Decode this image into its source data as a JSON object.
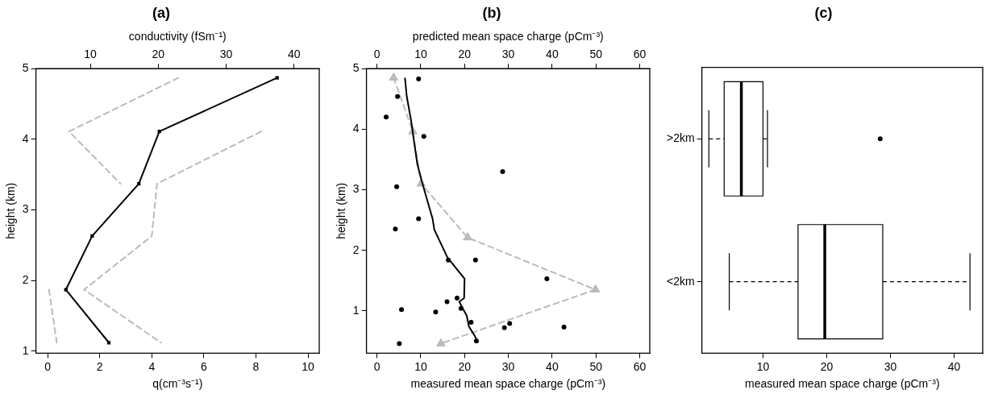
{
  "chart_data": [
    {
      "type": "line",
      "title": "(a)",
      "xlabel": "q(cm⁻³s⁻¹)",
      "x2label": "conductivity (fSm⁻¹)",
      "ylabel": "height (km)",
      "xlim": [
        -0.45,
        10.43
      ],
      "xticks": [
        0,
        2,
        4,
        6,
        8,
        10
      ],
      "x2lim": [
        2.0,
        43.7
      ],
      "x2ticks": [
        10,
        20,
        30,
        40
      ],
      "ylim": [
        0.97,
        5.0
      ],
      "yticks": [
        1,
        2,
        3,
        4,
        5
      ],
      "series": [
        {
          "color": "#000000",
          "marker": "square",
          "line_style": "solid",
          "x": [
            8.81,
            4.29,
            3.5,
            1.71,
            0.7,
            2.35
          ],
          "values": [
            4.87,
            4.11,
            3.37,
            2.63,
            1.87,
            1.12
          ]
        },
        {
          "color": "#bbbbbb",
          "marker": "none",
          "line_style": "dashed",
          "x": [
            5.02,
            0.82,
            2.8,
            null,
            0.05,
            0.35
          ],
          "values": [
            4.87,
            4.11,
            3.37,
            null,
            1.87,
            1.12
          ]
        },
        {
          "color": "#bbbbbb",
          "marker": "none",
          "line_style": "dashed",
          "x": [
            null,
            8.2,
            4.2,
            4.0,
            1.4,
            4.35
          ],
          "values": [
            null,
            4.11,
            3.37,
            2.63,
            1.87,
            1.12
          ]
        }
      ]
    },
    {
      "type": "scatter",
      "title": "(b)",
      "xlabel": "measured mean space charge (pCm⁻³)",
      "x2label": "predicted mean space charge (pCm⁻³)",
      "ylabel": "height (km)",
      "xlim": [
        -2.4,
        62.3
      ],
      "xticks": [
        0,
        10,
        20,
        30,
        40,
        50,
        60
      ],
      "x2lim": [
        -2.4,
        62.3
      ],
      "x2ticks": [
        0,
        10,
        20,
        30,
        40,
        50,
        60
      ],
      "ylim": [
        0.3,
        5.0
      ],
      "yticks": [
        1,
        2,
        3,
        4,
        5
      ],
      "series": [
        {
          "type": "scatter",
          "color": "#000000",
          "marker": "circle",
          "x": [
            9.5,
            4.7,
            2.1,
            10.7,
            28.7,
            4.5,
            9.5,
            4.2,
            16.3,
            22.5,
            38.8,
            18.3,
            16.0,
            5.6,
            13.4,
            19.2,
            21.5,
            30.3,
            29.1,
            42.7,
            22.7,
            5.1
          ],
          "values": [
            4.83,
            4.54,
            4.2,
            3.88,
            3.3,
            3.05,
            2.52,
            2.35,
            1.84,
            1.84,
            1.53,
            1.21,
            1.15,
            1.02,
            0.98,
            1.04,
            0.81,
            0.79,
            0.72,
            0.73,
            0.5,
            0.46
          ]
        },
        {
          "type": "line",
          "color": "#000000",
          "marker": "none",
          "line_style": "solid",
          "x": [
            6.4,
            6.8,
            7.8,
            8.5,
            9.2,
            10.2,
            11.7,
            12.7,
            13.1,
            14.6,
            16.1,
            18.1,
            20.0,
            19.9,
            18.8,
            19.5,
            20.5,
            21.0,
            22.3,
            23.0
          ],
          "values": [
            4.84,
            4.54,
            4.14,
            3.78,
            3.43,
            3.15,
            2.77,
            2.52,
            2.34,
            2.11,
            1.88,
            1.7,
            1.53,
            1.21,
            1.15,
            1.05,
            0.92,
            0.74,
            0.59,
            0.49
          ]
        },
        {
          "type": "line",
          "color": "#bbbbbb",
          "marker": "triangle",
          "line_style": "dashed",
          "x": [
            3.8,
            8.2,
            10.1,
            20.7,
            49.9,
            14.6
          ],
          "values": [
            4.85,
            3.96,
            3.1,
            2.21,
            1.35,
            0.46
          ]
        }
      ]
    },
    {
      "type": "box",
      "orientation": "horizontal",
      "title": "(c)",
      "xlabel": "measured mean space charge (pCm⁻³)",
      "categories": [
        ">2km",
        "<2km"
      ],
      "xlim": [
        0.4,
        44.5
      ],
      "xticks": [
        10,
        20,
        30,
        40
      ],
      "boxes": [
        {
          "low": 1.5,
          "q1": 3.9,
          "median": 6.6,
          "q3": 10.0,
          "high": 10.7,
          "outliers": [
            28.4
          ]
        },
        {
          "low": 4.7,
          "q1": 15.5,
          "median": 19.7,
          "q3": 28.8,
          "high": 42.5
        }
      ]
    }
  ]
}
